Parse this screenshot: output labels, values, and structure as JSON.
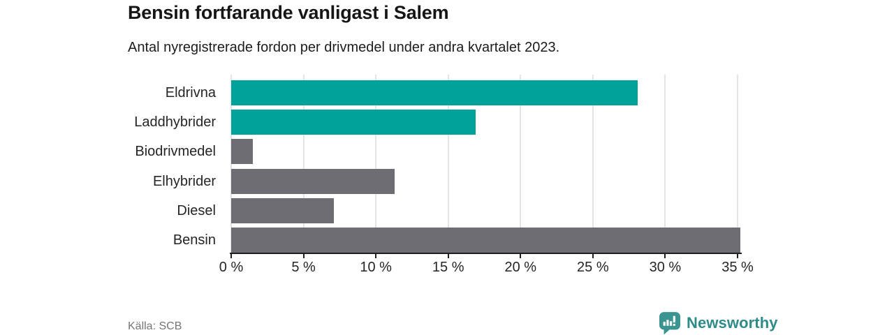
{
  "header": {
    "title": "Bensin fortfarande vanligast i Salem",
    "subtitle": "Antal nyregistrerade fordon per drivmedel under andra kvartalet 2023."
  },
  "footer": {
    "source": "Källa: SCB",
    "brand_name": "Newsworthy",
    "brand_color": "#2e8b8a",
    "brand_icon": "newsworthy-speech-bubble-chart-icon"
  },
  "colors": {
    "highlight_bar": "#00a29a",
    "default_bar": "#6e6d73",
    "gridline": "#e4e4e8",
    "axis": "#1f1f1f",
    "text": "#252525",
    "muted_text": "#757575"
  },
  "chart_data": {
    "type": "bar",
    "orientation": "horizontal",
    "title": "Bensin fortfarande vanligast i Salem",
    "subtitle": "Antal nyregistrerade fordon per drivmedel under andra kvartalet 2023.",
    "categories": [
      "Eldrivna",
      "Laddhybrider",
      "Biodrivmedel",
      "Elhybrider",
      "Diesel",
      "Bensin"
    ],
    "values": [
      28.1,
      16.9,
      1.5,
      11.3,
      7.1,
      35.2
    ],
    "bar_colors": [
      "#00a29a",
      "#00a29a",
      "#6e6d73",
      "#6e6d73",
      "#6e6d73",
      "#6e6d73"
    ],
    "unit": "%",
    "xlabel": "",
    "ylabel": "",
    "xlim": [
      0,
      35
    ],
    "x_ticks": [
      0,
      5,
      10,
      15,
      20,
      25,
      30,
      35
    ],
    "x_tick_labels": [
      "0 %",
      "5 %",
      "10 %",
      "15 %",
      "20 %",
      "25 %",
      "30 %",
      "35 %"
    ],
    "grid": true,
    "legend": false
  }
}
